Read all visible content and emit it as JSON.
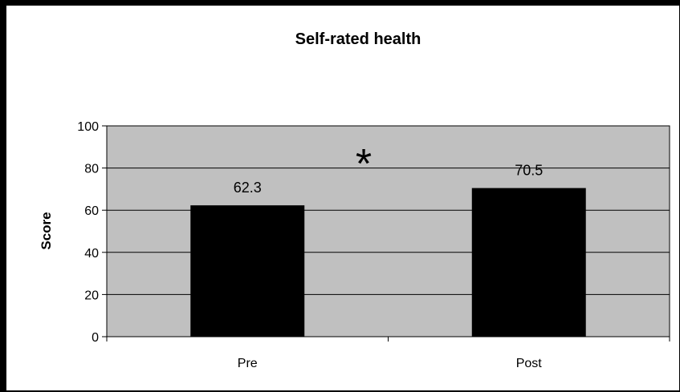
{
  "chart_data": {
    "type": "bar",
    "title": "Self-rated health",
    "xlabel": "",
    "ylabel": "Score",
    "categories": [
      "Pre",
      "Post"
    ],
    "values": [
      62.3,
      70.5
    ],
    "data_labels": [
      "62.3",
      "70.5"
    ],
    "ylim": [
      0,
      100
    ],
    "yticks": [
      0,
      20,
      40,
      60,
      80,
      100
    ],
    "grid": true,
    "legend": "none",
    "annotations": [
      "*"
    ],
    "colors": {
      "bar": "#000000",
      "plot_background": "#c0c0c0",
      "gridline": "#000000"
    }
  }
}
